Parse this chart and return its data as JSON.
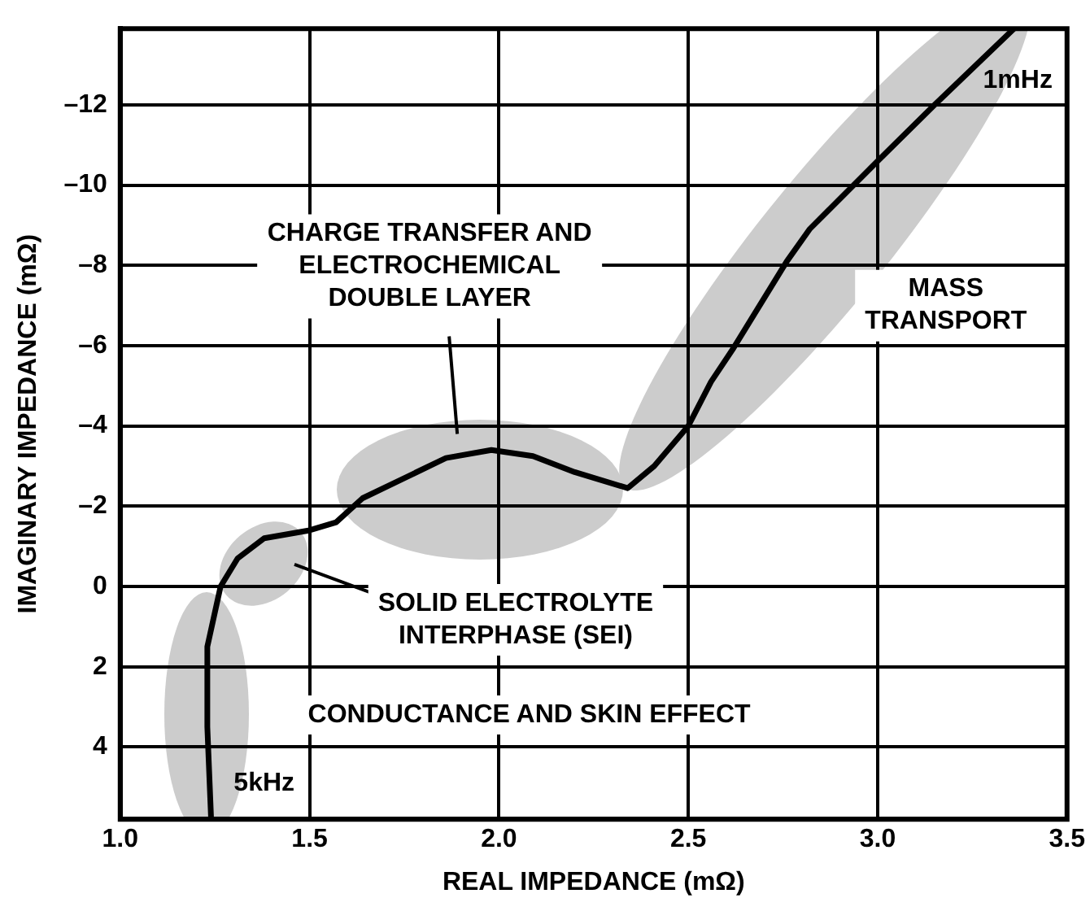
{
  "chart_data": {
    "type": "line",
    "xlabel": "REAL IMPEDANCE (mΩ)",
    "ylabel": "IMAGINARY IMPEDANCE (mΩ)",
    "xlim": [
      1.0,
      3.5
    ],
    "xticks": [
      {
        "value": 1,
        "label": "1.0"
      },
      {
        "value": 1.5,
        "label": "1.5"
      },
      {
        "value": 2,
        "label": "2.0"
      },
      {
        "value": 2.5,
        "label": "2.5"
      },
      {
        "value": 3,
        "label": "3.0"
      },
      {
        "value": 3.5,
        "label": "3.5"
      }
    ],
    "ylim": [
      5.8,
      -13.9
    ],
    "yticks": [
      {
        "value": -12,
        "label": "–12"
      },
      {
        "value": -10,
        "label": "–10"
      },
      {
        "value": -8,
        "label": "–8"
      },
      {
        "value": -6,
        "label": "–6"
      },
      {
        "value": -4,
        "label": "–4"
      },
      {
        "value": -2,
        "label": "–2"
      },
      0,
      2,
      4
    ],
    "grid": true,
    "legend": false,
    "marker": "none",
    "line_style": "solid",
    "series": [
      {
        "color": "#000000",
        "x": [
          1.24,
          1.23,
          1.23,
          1.265,
          1.31,
          1.38,
          1.5,
          1.57,
          1.64,
          1.75,
          1.86,
          1.98,
          2.09,
          2.2,
          2.34,
          2.41,
          2.5,
          2.56,
          2.62,
          2.76,
          2.82,
          3.0,
          3.15,
          3.36
        ],
        "values": [
          5.8,
          3.5,
          1.5,
          0,
          -0.7,
          -1.2,
          -1.4,
          -1.6,
          -2.2,
          -2.7,
          -3.2,
          -3.4,
          -3.25,
          -2.85,
          -2.45,
          -3.0,
          -4.0,
          -5.1,
          -5.95,
          -8.1,
          -8.9,
          -10.6,
          -12.0,
          -13.9
        ]
      }
    ],
    "annotations": [
      "CHARGE TRANSFER AND\nELECTROCHEMICAL\nDOUBLE LAYER",
      "SOLID ELECTROLYTE\nINTERPHASE (SEI)",
      "CONDUCTANCE AND SKIN EFFECT",
      "MASS\nTRANSPORT",
      "5kHz",
      "1mHz"
    ]
  }
}
